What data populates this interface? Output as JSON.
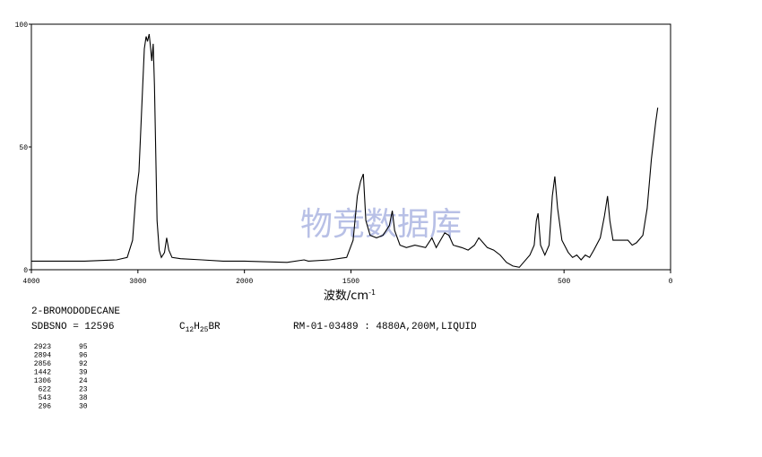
{
  "chart_data": {
    "type": "line",
    "x_label": "波数/cm",
    "x_label_sup": "-1",
    "watermark": "物竞数据库",
    "compound": "2-BROMODODECANE",
    "sdbs": "SDBSNO = 12596",
    "formula": [
      "C",
      "12",
      "H",
      "25",
      "BR"
    ],
    "measurement": "RM-01-03489 : 4880A,200M,LIQUID",
    "peaks": [
      [
        2923,
        95
      ],
      [
        2894,
        96
      ],
      [
        2856,
        92
      ],
      [
        1442,
        39
      ],
      [
        1306,
        24
      ],
      [
        622,
        23
      ],
      [
        543,
        38
      ],
      [
        296,
        30
      ]
    ],
    "xlim": [
      4000,
      0
    ],
    "xticks": [
      4000,
      3000,
      2000,
      1500,
      500,
      0
    ],
    "x_expand_below": 2000,
    "x_expand_factor": 2,
    "ylim": [
      0,
      100
    ],
    "yticks": [
      0,
      50,
      100
    ],
    "color": "#000000",
    "x": [
      4000,
      3500,
      3200,
      3100,
      3050,
      3020,
      2990,
      2960,
      2940,
      2923,
      2910,
      2894,
      2880,
      2870,
      2856,
      2845,
      2820,
      2800,
      2780,
      2750,
      2730,
      2710,
      2680,
      2600,
      2400,
      2200,
      2000,
      1800,
      1720,
      1700,
      1600,
      1520,
      1490,
      1470,
      1455,
      1442,
      1430,
      1410,
      1380,
      1350,
      1320,
      1306,
      1295,
      1270,
      1240,
      1200,
      1150,
      1120,
      1100,
      1080,
      1060,
      1040,
      1020,
      980,
      950,
      920,
      900,
      880,
      860,
      830,
      800,
      770,
      740,
      710,
      690,
      660,
      640,
      630,
      622,
      610,
      590,
      570,
      555,
      543,
      530,
      510,
      480,
      460,
      440,
      420,
      400,
      380,
      360,
      330,
      310,
      296,
      285,
      270,
      240,
      200,
      180,
      160,
      130,
      110,
      90,
      70,
      60
    ],
    "values": [
      3.5,
      3.5,
      4,
      5,
      12,
      30,
      40,
      70,
      90,
      95,
      93,
      96,
      90,
      85,
      92,
      75,
      20,
      8,
      5,
      7,
      13,
      8,
      5,
      4.5,
      4,
      3.5,
      3.5,
      3,
      4,
      3.5,
      4,
      5,
      12,
      30,
      36,
      39,
      20,
      14,
      13,
      14,
      18,
      24,
      16,
      10,
      9,
      10,
      9,
      13,
      9,
      12,
      15,
      14,
      10,
      9,
      8,
      10,
      13,
      11,
      9,
      8,
      6,
      3,
      1.5,
      1,
      3,
      6,
      10,
      20,
      23,
      10,
      6,
      10,
      30,
      38,
      25,
      12,
      7,
      5,
      6,
      4,
      6,
      5,
      8,
      13,
      22,
      30,
      20,
      12,
      12,
      12,
      10,
      11,
      14,
      25,
      45,
      60,
      66
    ]
  }
}
